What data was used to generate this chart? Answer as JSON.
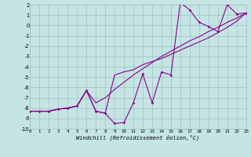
{
  "xlabel": "Windchill (Refroidissement éolien,°C)",
  "bg_color": "#c5e5e5",
  "grid_color": "#a0c0c0",
  "line_color": "#880088",
  "xlim": [
    0,
    23
  ],
  "ylim": [
    -10,
    2
  ],
  "xticks": [
    0,
    1,
    2,
    3,
    4,
    5,
    6,
    7,
    8,
    9,
    10,
    11,
    12,
    13,
    14,
    15,
    16,
    17,
    18,
    19,
    20,
    21,
    22,
    23
  ],
  "yticks": [
    -10,
    -9,
    -8,
    -7,
    -6,
    -5,
    -4,
    -3,
    -2,
    -1,
    0,
    1,
    2
  ],
  "hours": [
    0,
    1,
    2,
    3,
    4,
    5,
    6,
    7,
    8,
    9,
    10,
    11,
    12,
    13,
    14,
    15,
    16,
    17,
    18,
    19,
    20,
    21,
    22,
    23
  ],
  "windchill": [
    -8.3,
    -8.3,
    -8.3,
    -8.1,
    -8.0,
    -7.8,
    -6.3,
    -8.3,
    -8.5,
    -9.5,
    -9.4,
    -7.5,
    -4.7,
    -7.5,
    -4.5,
    -4.8,
    2.2,
    1.5,
    0.3,
    -0.1,
    -0.6,
    2.0,
    1.1,
    1.2
  ],
  "line2": [
    -8.3,
    -8.3,
    -8.3,
    -8.1,
    -8.0,
    -7.8,
    -6.3,
    -8.3,
    -8.5,
    -4.8,
    -4.5,
    -4.3,
    -3.8,
    -3.5,
    -3.2,
    -2.8,
    -2.4,
    -2.0,
    -1.6,
    -1.2,
    -0.7,
    -0.2,
    0.4,
    1.2
  ],
  "line3": [
    -8.3,
    -8.3,
    -8.3,
    -8.1,
    -8.0,
    -7.8,
    -6.3,
    -7.5,
    -7.0,
    -6.2,
    -5.5,
    -4.8,
    -4.2,
    -3.6,
    -3.0,
    -2.5,
    -2.0,
    -1.5,
    -1.1,
    -0.6,
    -0.2,
    0.3,
    0.7,
    1.2
  ]
}
